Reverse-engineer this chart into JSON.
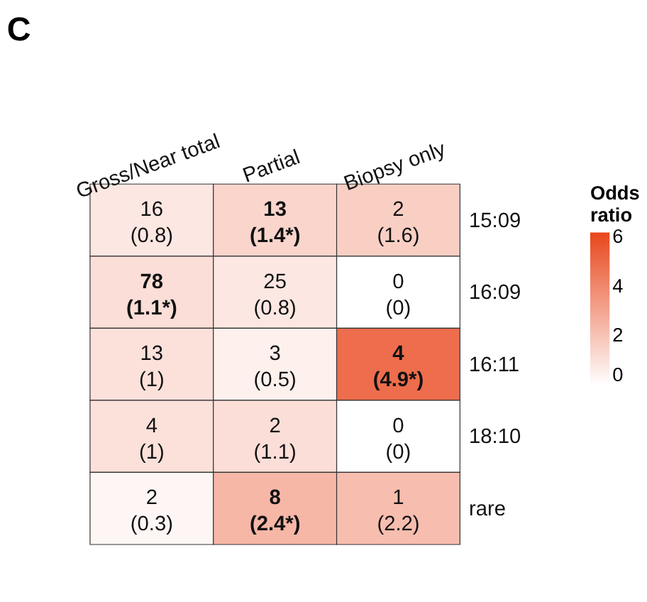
{
  "chart_data": {
    "type": "heatmap",
    "title": "C",
    "legend_title": "Odds ratio",
    "categories": [
      "Gross/Near total",
      "Partial",
      "Biopsy only"
    ],
    "y_categories": [
      "15:09",
      "16:09",
      "16:11",
      "18:10",
      "rare"
    ],
    "cells": [
      [
        0.8,
        1.4,
        1.6
      ],
      [
        1.1,
        0.8,
        0
      ],
      [
        1,
        0.5,
        4.9
      ],
      [
        1,
        1.1,
        0
      ],
      [
        0.3,
        2.4,
        2.2
      ]
    ],
    "cell_labels": [
      [
        "16\n(0.8)",
        "13\n(1.4*)",
        "2\n(1.6)"
      ],
      [
        "78\n(1.1*)",
        "25\n(0.8)",
        "0\n(0)"
      ],
      [
        "13\n(1)",
        "3\n(0.5)",
        "4\n(4.9*)"
      ],
      [
        "4\n(1)",
        "2\n(1.1)",
        "0\n(0)"
      ],
      [
        "2\n(0.3)",
        "8\n(2.4*)",
        "1\n(2.2)"
      ]
    ],
    "clim": [
      0,
      6.2
    ],
    "cticks": [
      0,
      2,
      4,
      6
    ],
    "colors": [
      "#ffffff",
      "#e8461c"
    ]
  }
}
